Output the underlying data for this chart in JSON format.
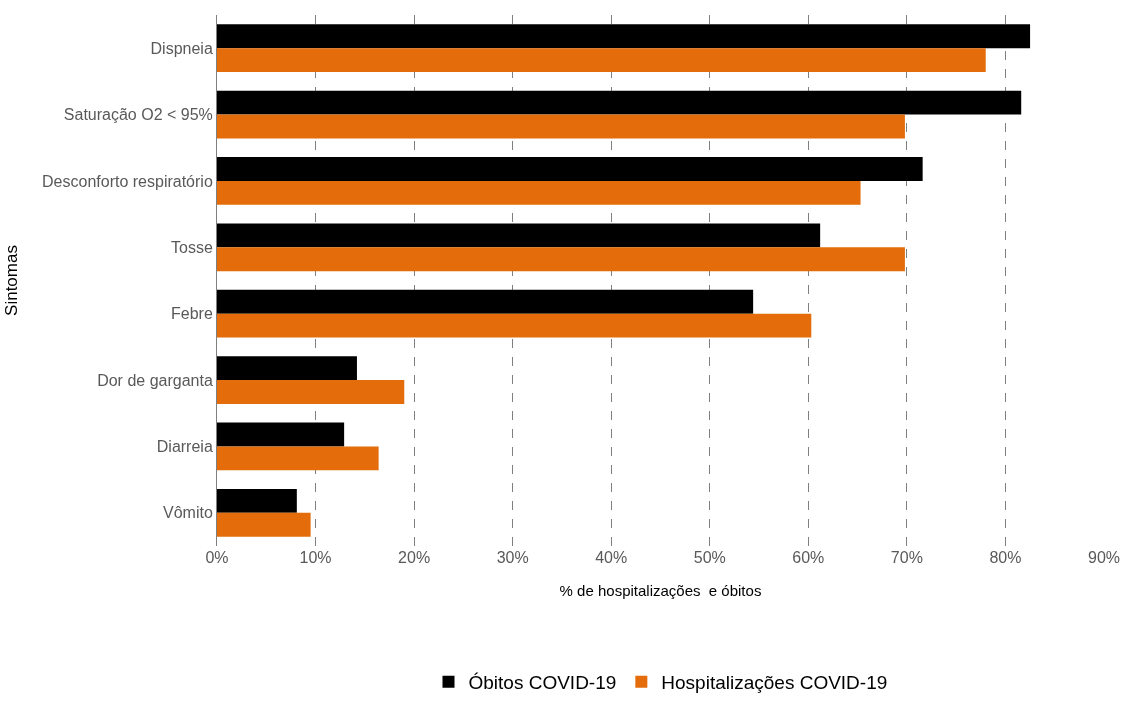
{
  "chart_data": {
    "type": "bar",
    "orientation": "horizontal",
    "xlabel": "% de hospitalizações  e óbitos",
    "ylabel": "Sintomas",
    "categories": [
      "Dispneia",
      "Saturação O2 < 95%",
      "Desconforto respiratório",
      "Tosse",
      "Febre",
      "Dor de garganta",
      "Diarreia",
      "Vômito"
    ],
    "series": [
      {
        "name": "Óbitos COVID-19",
        "color": "#000000",
        "values": [
          82.5,
          81.6,
          71.6,
          61.2,
          54.4,
          14.2,
          12.9,
          8.1
        ]
      },
      {
        "name": "Hospitalizações COVID-19",
        "color": "#e46c0a",
        "values": [
          78.0,
          69.8,
          65.3,
          69.8,
          60.3,
          19.0,
          16.4,
          9.5
        ]
      }
    ],
    "xlim": [
      0,
      90
    ],
    "xticks": [
      {
        "value": 0,
        "label": "0%"
      },
      {
        "value": 10,
        "label": "10%"
      },
      {
        "value": 20,
        "label": "20%"
      },
      {
        "value": 30,
        "label": "30%"
      },
      {
        "value": 40,
        "label": "40%"
      },
      {
        "value": 50,
        "label": "50%"
      },
      {
        "value": 60,
        "label": "60%"
      },
      {
        "value": 70,
        "label": "70%"
      },
      {
        "value": 80,
        "label": "80%"
      },
      {
        "value": 90,
        "label": "90%"
      }
    ],
    "grid": "x",
    "legend": "bottom"
  }
}
